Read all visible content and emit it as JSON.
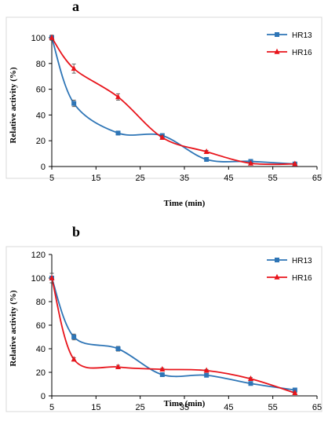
{
  "chart_data": [
    {
      "panel": "a",
      "type": "line",
      "xlabel": "Time (min)",
      "ylabel": "Relative activity (%)",
      "xlim": [
        5,
        65
      ],
      "ylim": [
        0,
        100
      ],
      "xticks": [
        5,
        15,
        25,
        35,
        45,
        55,
        65
      ],
      "yticks": [
        0,
        20,
        40,
        60,
        80,
        100
      ],
      "grid": false,
      "legend_position": "top-right",
      "series": [
        {
          "name": "HR13",
          "color": "#2e75b6",
          "marker": "square",
          "x": [
            5,
            10,
            20,
            30,
            40,
            50,
            60
          ],
          "y": [
            100,
            49,
            26,
            24,
            5.5,
            4,
            2
          ],
          "err": [
            1.5,
            2.5,
            1.5,
            1.5,
            1,
            1,
            0.5
          ]
        },
        {
          "name": "HR16",
          "color": "#e8141b",
          "marker": "triangle",
          "x": [
            5,
            10,
            20,
            30,
            40,
            50,
            60
          ],
          "y": [
            100,
            76,
            54,
            22.5,
            11.5,
            2.5,
            2
          ],
          "err": [
            2,
            3.5,
            2.5,
            1.5,
            1,
            0.5,
            0.5
          ]
        }
      ]
    },
    {
      "panel": "b",
      "type": "line",
      "xlabel": "Time (min)",
      "ylabel": "Relative activity (%)",
      "xlim": [
        5,
        65
      ],
      "ylim": [
        0,
        120
      ],
      "xticks": [
        5,
        15,
        25,
        35,
        45,
        55,
        65
      ],
      "yticks": [
        0,
        20,
        40,
        60,
        80,
        100,
        120
      ],
      "grid": false,
      "legend_position": "top-right",
      "series": [
        {
          "name": "HR13",
          "color": "#2e75b6",
          "marker": "square",
          "x": [
            5,
            10,
            20,
            30,
            40,
            50,
            60
          ],
          "y": [
            100,
            50,
            40,
            18,
            17.5,
            10.5,
            5
          ],
          "err": [
            4,
            2.5,
            2,
            1,
            1,
            1,
            0.5
          ]
        },
        {
          "name": "HR16",
          "color": "#e8141b",
          "marker": "triangle",
          "x": [
            5,
            10,
            20,
            30,
            40,
            50,
            60
          ],
          "y": [
            100,
            31,
            24.5,
            22.5,
            21.5,
            14.5,
            2.5
          ],
          "err": [
            4,
            1.5,
            1.5,
            1,
            1,
            1,
            0.5
          ]
        }
      ]
    }
  ]
}
